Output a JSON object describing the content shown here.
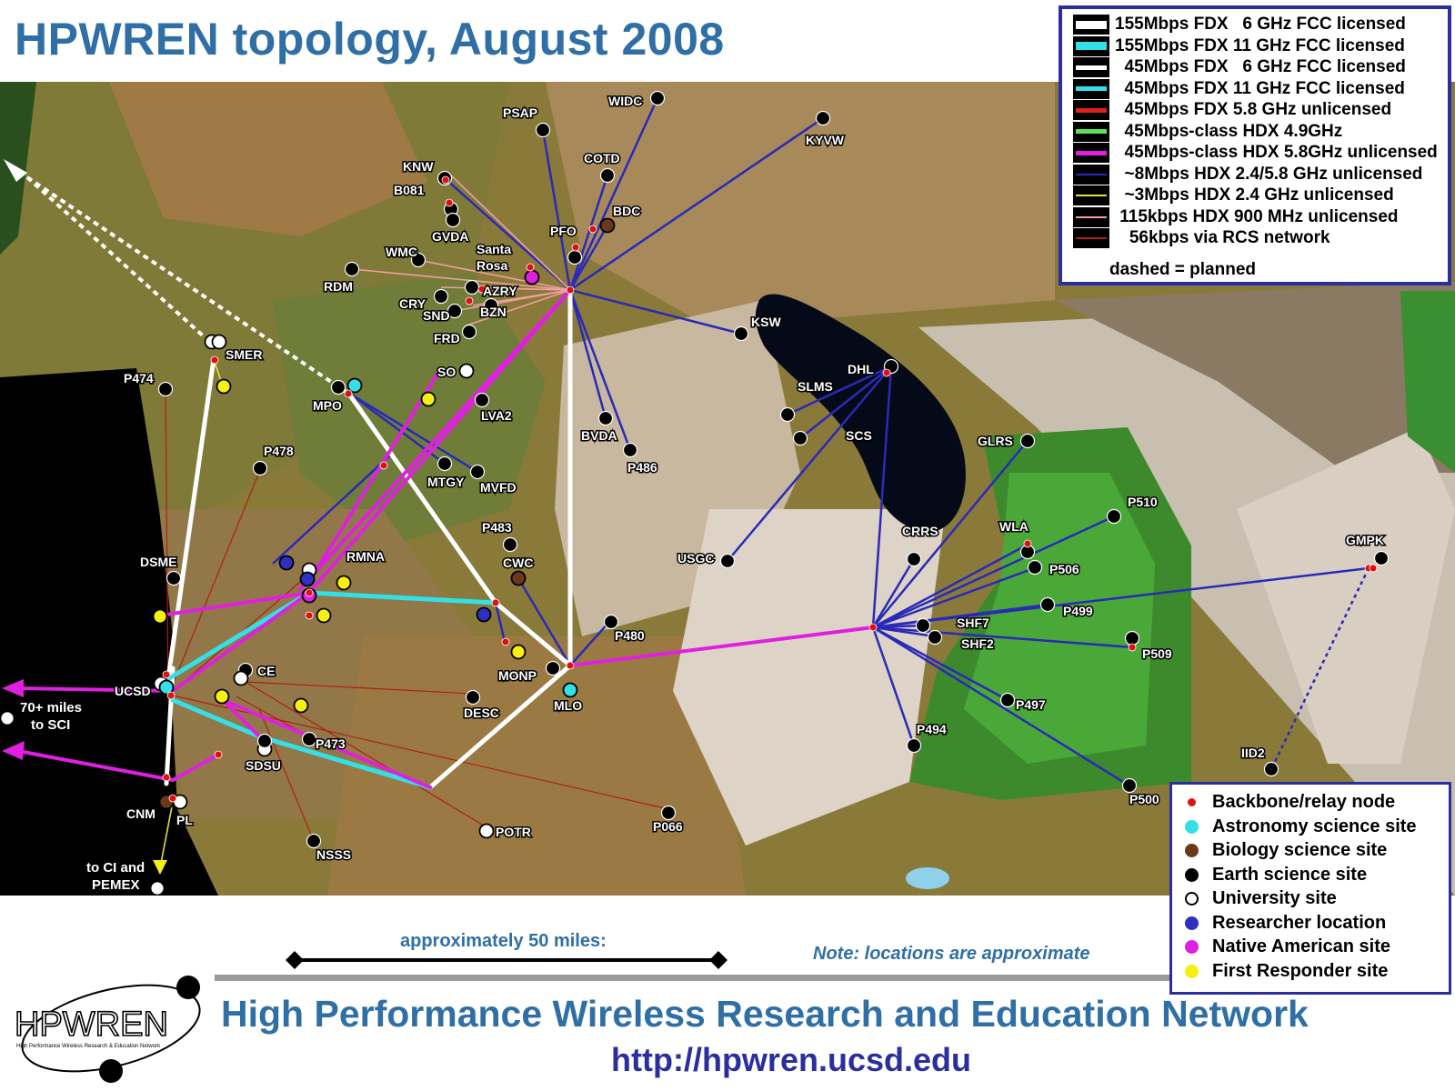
{
  "title": "HPWREN topology, August 2008",
  "link_legend": [
    {
      "text": "155Mbps FDX   6 GHz FCC licensed",
      "color": "#ffffff",
      "weight": "heavy"
    },
    {
      "text": "155Mbps FDX 11 GHz FCC licensed",
      "color": "#33e0e8",
      "weight": "heavy"
    },
    {
      "text": "  45Mbps FDX   6 GHz FCC licensed",
      "color": "#ffffff",
      "weight": "medium"
    },
    {
      "text": "  45Mbps FDX 11 GHz FCC licensed",
      "color": "#33e0e8",
      "weight": "medium"
    },
    {
      "text": "  45Mbps FDX 5.8 GHz unlicensed",
      "color": "#e0201c",
      "weight": "medium"
    },
    {
      "text": "  45Mbps-class HDX 4.9GHz",
      "color": "#5ee05e",
      "weight": "medium"
    },
    {
      "text": "  45Mbps-class HDX 5.8GHz unlicensed",
      "color": "#e020e0",
      "weight": "medium"
    },
    {
      "text": "  ~8Mbps HDX 2.4/5.8 GHz unlicensed",
      "color": "#2a2ab8",
      "weight": "thin"
    },
    {
      "text": "  ~3Mbps HDX 2.4 GHz unlicensed",
      "color": "#e8e040",
      "weight": "thin"
    },
    {
      "text": " 115kbps HDX 900 MHz unlicensed",
      "color": "#f0a0a0",
      "weight": "thin"
    },
    {
      "text": "   56kbps via RCS network",
      "color": "#b02010",
      "weight": "thin"
    }
  ],
  "link_legend_note": "dashed = planned",
  "site_legend": [
    {
      "text": "Backbone/relay node",
      "color": "#e01010",
      "kind": "small"
    },
    {
      "text": "Astronomy science site",
      "color": "#33e0e8",
      "kind": "filled"
    },
    {
      "text": "Biology science site",
      "color": "#6a3a18",
      "kind": "filled"
    },
    {
      "text": "Earth science site",
      "color": "#000000",
      "kind": "filled"
    },
    {
      "text": "University site",
      "color": "#ffffff",
      "kind": "hollow"
    },
    {
      "text": "Researcher location",
      "color": "#3030c0",
      "kind": "filled"
    },
    {
      "text": "Native American site",
      "color": "#e020e0",
      "kind": "filled"
    },
    {
      "text": "First Responder site",
      "color": "#f5f010",
      "kind": "filled"
    }
  ],
  "map_labels": {
    "WIDC": "WIDC",
    "PSAP": "PSAP",
    "KYVW": "KYVW",
    "COTD": "COTD",
    "KNW": "KNW",
    "B081": "B081",
    "BDC": "BDC",
    "GVDA": "GVDA",
    "PFO": "PFO",
    "WMC": "WMC",
    "Santa": "Santa",
    "Rosa": "Rosa",
    "RDM": "RDM",
    "AZRY": "AZRY",
    "CRY": "CRY",
    "BZN": "BZN",
    "SND": "SND",
    "KSW": "KSW",
    "FRD": "FRD",
    "SMER": "SMER",
    "DHL": "DHL",
    "SLMS": "SLMS",
    "P474": "P474",
    "SO": "SO",
    "MPO": "MPO",
    "SCS": "SCS",
    "LVA2": "LVA2",
    "GLRS": "GLRS",
    "BVDA": "BVDA",
    "P486": "P486",
    "P478": "P478",
    "MTGY": "MTGY",
    "MVFD": "MVFD",
    "P510": "P510",
    "P483": "P483",
    "CRRS": "CRRS",
    "WLA": "WLA",
    "GMPK": "GMPK",
    "RMNA": "RMNA",
    "DSME": "DSME",
    "CWC": "CWC",
    "USGC": "USGC",
    "P506": "P506",
    "SHF7": "SHF7",
    "P499": "P499",
    "P480": "P480",
    "SHF2": "SHF2",
    "P509": "P509",
    "CE": "CE",
    "MONP": "MONP",
    "UCSD": "UCSD",
    "MLO": "MLO",
    "P497": "P497",
    "DESC": "DESC",
    "P494": "P494",
    "P473": "P473",
    "IID2": "IID2",
    "SDSU": "SDSU",
    "P500": "P500",
    "CNM": "CNM",
    "PL": "PL",
    "POTR": "POTR",
    "P066": "P066",
    "NSSS": "NSSS",
    "SCI1": "70+ miles",
    "SCI2": "to SCI",
    "CI1": "to CI and",
    "CI2": "PEMEX"
  },
  "scale_label": "approximately 50 miles:",
  "note": "Note: locations are approximate",
  "logo_text": "HPWREN",
  "logo_subtext": "High Performance Wireless Research & Education Network",
  "network_name": "High Performance Wireless Research and Education Network",
  "url": "http://hpwren.ucsd.edu"
}
